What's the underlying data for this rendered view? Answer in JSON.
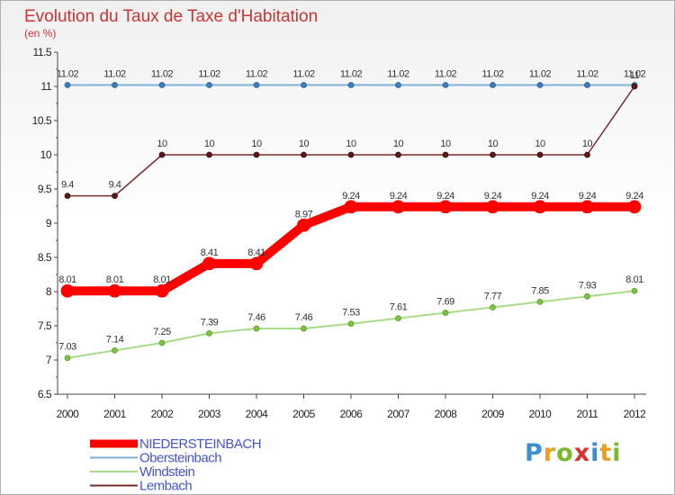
{
  "chart_data": {
    "type": "line",
    "title": "Evolution du Taux de Taxe d'Habitation",
    "subtitle": "(en %)",
    "x": [
      "2000",
      "2001",
      "2002",
      "2003",
      "2004",
      "2005",
      "2006",
      "2007",
      "2008",
      "2009",
      "2010",
      "2011",
      "2012"
    ],
    "ylim": [
      6.5,
      11.5
    ],
    "yticks": [
      "6.5",
      "7",
      "7.5",
      "8",
      "8.5",
      "9",
      "9.5",
      "10",
      "10.5",
      "11",
      "11.5"
    ],
    "grid": false,
    "legend_position": "bottom-left",
    "series": [
      {
        "name": "Obersteinbach",
        "color": "#7fb0d6",
        "values": [
          11.02,
          11.02,
          11.02,
          11.02,
          11.02,
          11.02,
          11.02,
          11.02,
          11.02,
          11.02,
          11.02,
          11.02,
          11.02
        ],
        "labels": [
          "11.02",
          "11.02",
          "11.02",
          "11.02",
          "11.02",
          "11.02",
          "11.02",
          "11.02",
          "11.02",
          "11.02",
          "11.02",
          "11.02",
          "11.02"
        ]
      },
      {
        "name": "Lembach",
        "color": "#7a2a2a",
        "values": [
          9.4,
          9.4,
          10,
          10,
          10,
          10,
          10,
          10,
          10,
          10,
          10,
          10,
          11
        ],
        "labels": [
          "9.4",
          "9.4",
          "10",
          "10",
          "10",
          "10",
          "10",
          "10",
          "10",
          "10",
          "10",
          "10",
          "11"
        ]
      },
      {
        "name": "Windstein",
        "color": "#a8dc88",
        "values": [
          7.03,
          7.14,
          7.25,
          7.39,
          7.46,
          7.46,
          7.53,
          7.61,
          7.69,
          7.77,
          7.85,
          7.93,
          8.01
        ],
        "labels": [
          "7.03",
          "7.14",
          "7.25",
          "7.39",
          "7.46",
          "7.46",
          "7.53",
          "7.61",
          "7.69",
          "7.77",
          "7.85",
          "7.93",
          "8.01"
        ]
      },
      {
        "name": "NIEDERSTEINBACH",
        "color": "#ff0000",
        "values": [
          8.01,
          8.01,
          8.01,
          8.41,
          8.41,
          8.97,
          9.24,
          9.24,
          9.24,
          9.24,
          9.24,
          9.24,
          9.24
        ],
        "labels": [
          "8.01",
          "8.01",
          "8.01",
          "8.41",
          "8.41",
          "8.97",
          "9.24",
          "9.24",
          "9.24",
          "9.24",
          "9.24",
          "9.24",
          "9.24"
        ]
      }
    ],
    "legend": [
      "NIEDERSTEINBACH",
      "Obersteinbach",
      "Windstein",
      "Lembach"
    ]
  },
  "logo": {
    "letters": [
      "P",
      "r",
      "o",
      "x",
      "i",
      "t",
      "i"
    ],
    "colors": [
      "#3a8fd4",
      "#e8a020",
      "#7ab82e",
      "#d93030",
      "#3a8fd4",
      "#e8a020",
      "#7ab82e"
    ]
  }
}
